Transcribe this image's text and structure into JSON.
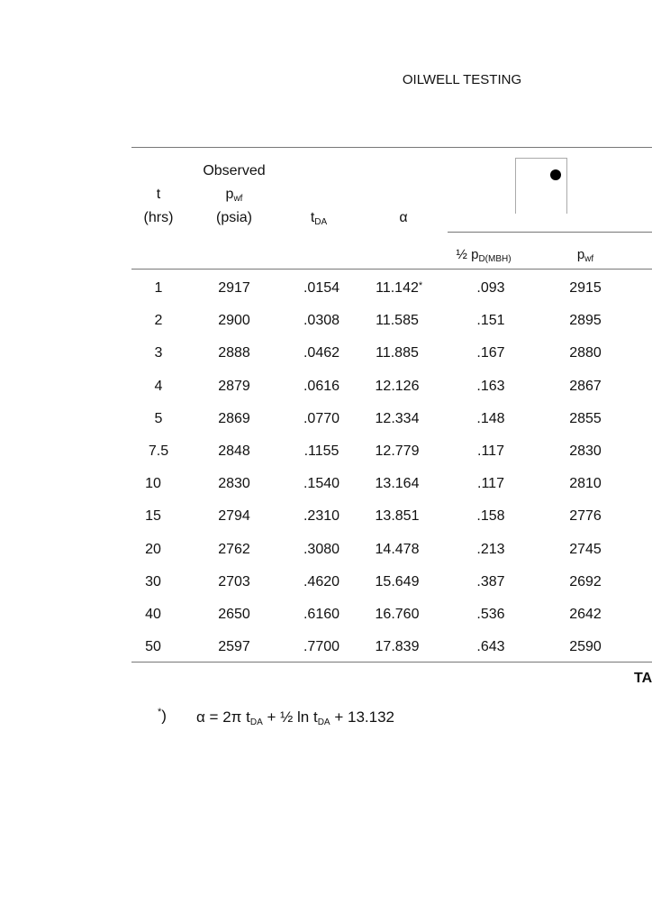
{
  "header": {
    "running_title": "OILWELL TESTING"
  },
  "table": {
    "headers": {
      "t": "t",
      "t_unit": "(hrs)",
      "observed": "Observed",
      "pwf": "p",
      "pwf_sub": "wf",
      "pwf_unit": "(psia)",
      "tda": "t",
      "tda_sub": "DA",
      "alpha": "α",
      "half_pd_prefix": "½ p",
      "half_pd_sub": "D(MBH)",
      "pwf2": "p",
      "pwf2_sub": "wf"
    },
    "rows": [
      {
        "t": "1",
        "pwf": "2917",
        "tda": ".0154",
        "alpha": "11.142",
        "alpha_note": "*",
        "half_pd": ".093",
        "pwf_calc": "2915"
      },
      {
        "t": "2",
        "pwf": "2900",
        "tda": ".0308",
        "alpha": "11.585",
        "half_pd": ".151",
        "pwf_calc": "2895"
      },
      {
        "t": "3",
        "pwf": "2888",
        "tda": ".0462",
        "alpha": "11.885",
        "half_pd": ".167",
        "pwf_calc": "2880"
      },
      {
        "t": "4",
        "pwf": "2879",
        "tda": ".0616",
        "alpha": "12.126",
        "half_pd": ".163",
        "pwf_calc": "2867"
      },
      {
        "t": "5",
        "pwf": "2869",
        "tda": ".0770",
        "alpha": "12.334",
        "half_pd": ".148",
        "pwf_calc": "2855"
      },
      {
        "t": "7.5",
        "pwf": "2848",
        "tda": ".1155",
        "alpha": "12.779",
        "half_pd": ".117",
        "pwf_calc": "2830"
      },
      {
        "t": "10",
        "pwf": "2830",
        "tda": ".1540",
        "alpha": "13.164",
        "half_pd": ".117",
        "pwf_calc": "2810"
      },
      {
        "t": "15",
        "pwf": "2794",
        "tda": ".2310",
        "alpha": "13.851",
        "half_pd": ".158",
        "pwf_calc": "2776"
      },
      {
        "t": "20",
        "pwf": "2762",
        "tda": ".3080",
        "alpha": "14.478",
        "half_pd": ".213",
        "pwf_calc": "2745"
      },
      {
        "t": "30",
        "pwf": "2703",
        "tda": ".4620",
        "alpha": "15.649",
        "half_pd": ".387",
        "pwf_calc": "2692"
      },
      {
        "t": "40",
        "pwf": "2650",
        "tda": ".6160",
        "alpha": "16.760",
        "half_pd": ".536",
        "pwf_calc": "2642"
      },
      {
        "t": "50",
        "pwf": "2597",
        "tda": ".7700",
        "alpha": "17.839",
        "half_pd": ".643",
        "pwf_calc": "2590"
      }
    ],
    "caption_fragment": "TA"
  },
  "footnote": {
    "marker": "*",
    "paren": ")",
    "lhs": "α  =  2π t",
    "sub1": "DA",
    "mid": " +  ½ ln t",
    "sub2": "DA",
    "rhs": " +  13.132"
  }
}
